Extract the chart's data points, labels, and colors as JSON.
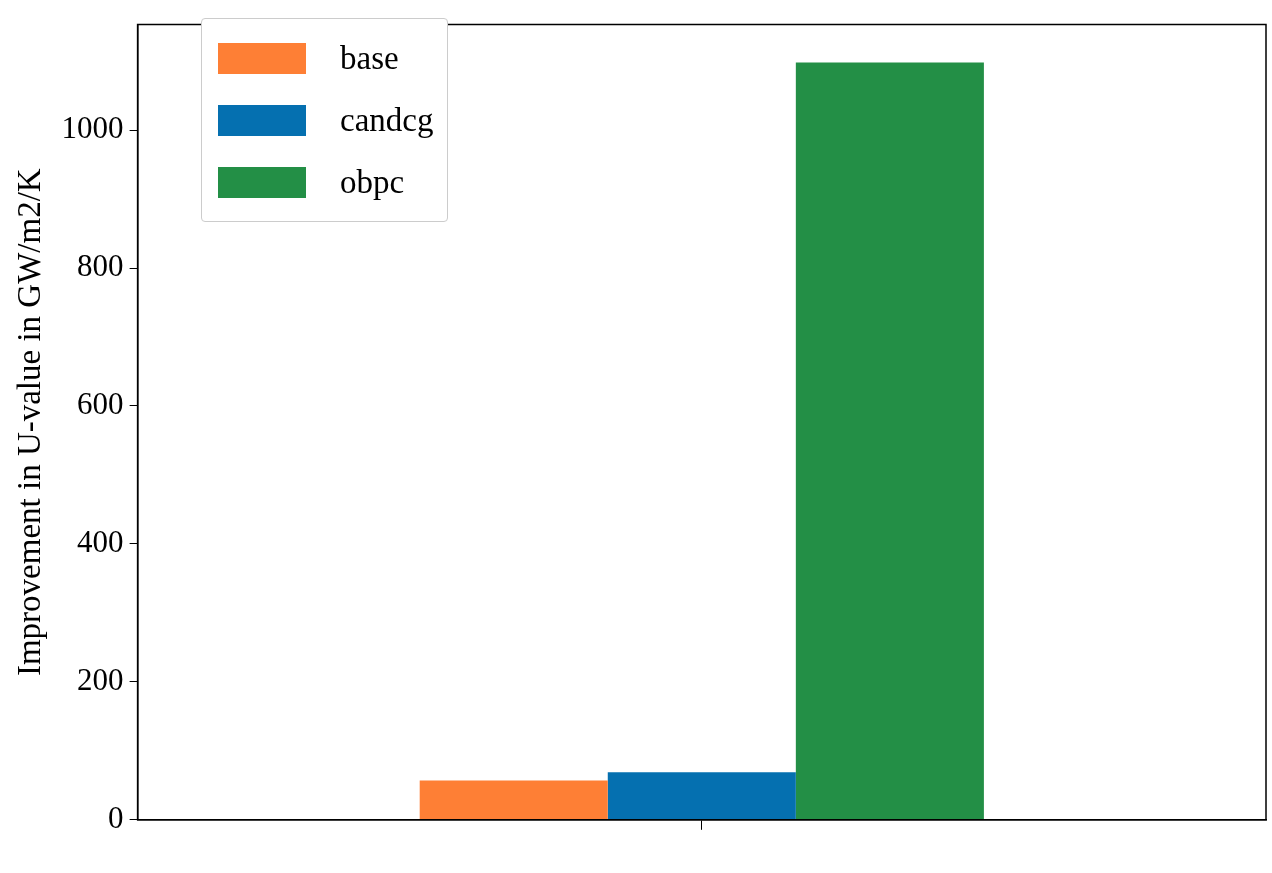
{
  "chart_data": {
    "type": "bar",
    "ylabel": "Improvement in U-value in GW/m2/K",
    "categories": [
      null
    ],
    "series": [
      {
        "name": "base",
        "color": "#fe7f35",
        "values": [
          57
        ]
      },
      {
        "name": "candcg",
        "color": "#0570b0",
        "values": [
          69
        ]
      },
      {
        "name": "obpc",
        "color": "#238f46",
        "values": [
          1098
        ]
      }
    ],
    "ylim": [
      0,
      1153
    ],
    "yticks": [
      0,
      200,
      400,
      600,
      800,
      1000
    ],
    "grid": false,
    "legend": "top left"
  }
}
